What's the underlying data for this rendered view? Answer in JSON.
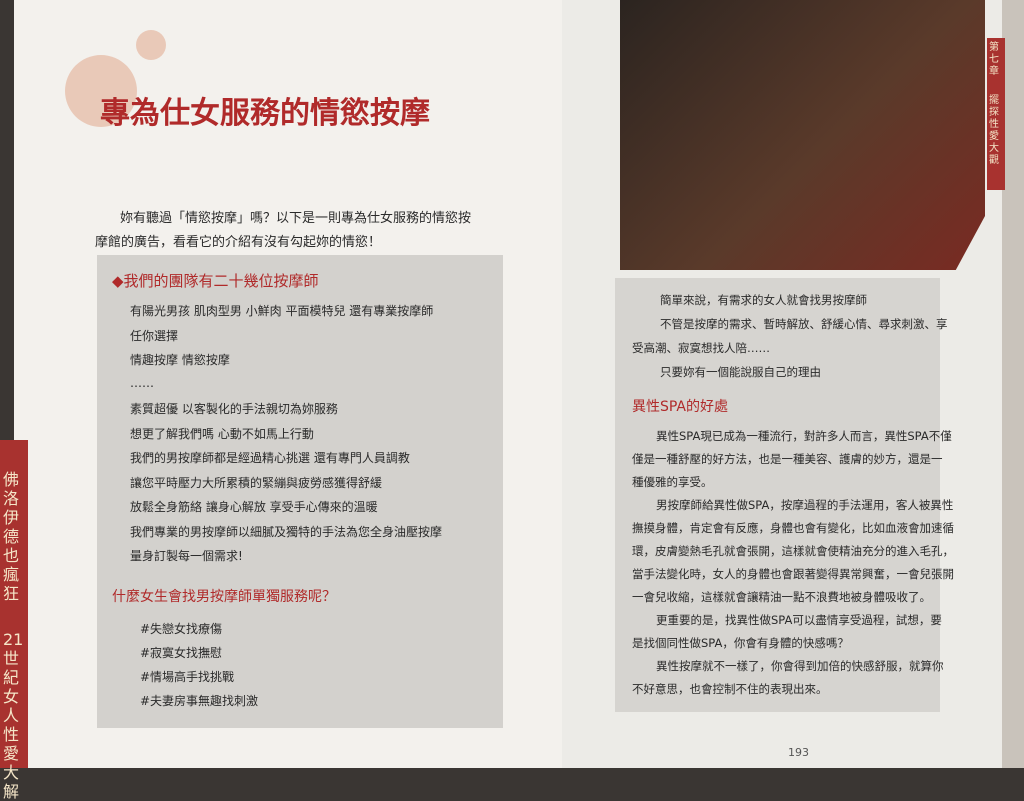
{
  "left_page": {
    "title": "專為仕女服務的情慾按摩",
    "intro": [
      "妳有聽過「情慾按摩」嗎？以下是一則專為仕女服務的情慾按",
      "摩館的廣告，看看它的介紹有沒有勾起妳的情慾！"
    ],
    "box": {
      "heading": "◆我們的團隊有二十幾位按摩師",
      "lines": [
        "有陽光男孩 肌肉型男 小鮮肉 平面模特兒 還有專業按摩師",
        "任你選擇",
        "情趣按摩 情慾按摩",
        "……",
        "素質超優 以客製化的手法親切為妳服務",
        "想更了解我們嗎 心動不如馬上行動",
        "我們的男按摩師都是經過精心挑選 還有專門人員調教",
        "讓您平時壓力大所累積的緊繃與疲勞感獲得舒緩",
        "放鬆全身筋絡 讓身心解放 享受手心傳來的溫暖",
        "我們專業的男按摩師以細膩及獨特的手法為您全身油壓按摩",
        "量身訂製每一個需求!"
      ],
      "heading2": "什麼女生會找男按摩師單獨服務呢？",
      "tags": [
        "#失戀女找療傷",
        "#寂寞女找撫慰",
        "#情場高手找挑戰",
        "#夫妻房事無趣找刺激"
      ]
    },
    "side_tab": [
      "佛洛伊德也瘋狂",
      "21世紀女人性愛大解"
    ]
  },
  "right_page": {
    "chapter_tab": [
      "第七章",
      "擺探性愛大觀"
    ],
    "box": {
      "lines": [
        "簡單來說，有需求的女人就會找男按摩師",
        "不管是按摩的需求、暫時解放、舒緩心情、尋求刺激、享",
        "受高潮、寂寞想找人陪……",
        "只要妳有一個能說服自己的理由"
      ],
      "heading": "異性SPA的好處",
      "paragraph_lines": [
        "異性SPA現已成為一種流行，對許多人而言，異性SPA不僅",
        "僅是一種舒壓的好方法，也是一種美容、護膚的妙方，還是一",
        "種優雅的享受。",
        "男按摩師給異性做SPA，按摩過程的手法運用，客人被異性",
        "撫摸身體，肯定會有反應，身體也會有變化，比如血液會加速循",
        "環，皮膚變熱毛孔就會張開，這樣就會使精油充分的進入毛孔，",
        "當手法變化時，女人的身體也會跟著變得異常興奮，一會兒張開",
        "一會兒收縮，這樣就會讓精油一點不浪費地被身體吸收了。",
        "更重要的是，找異性做SPA可以盡情享受過程，試想，要",
        "是找個同性做SPA，你會有身體的快感嗎？",
        "異性按摩就不一樣了，你會得到加倍的快感舒服，就算你",
        "不好意思，也會控制不住的表現出來。"
      ]
    },
    "page_number": "193"
  }
}
